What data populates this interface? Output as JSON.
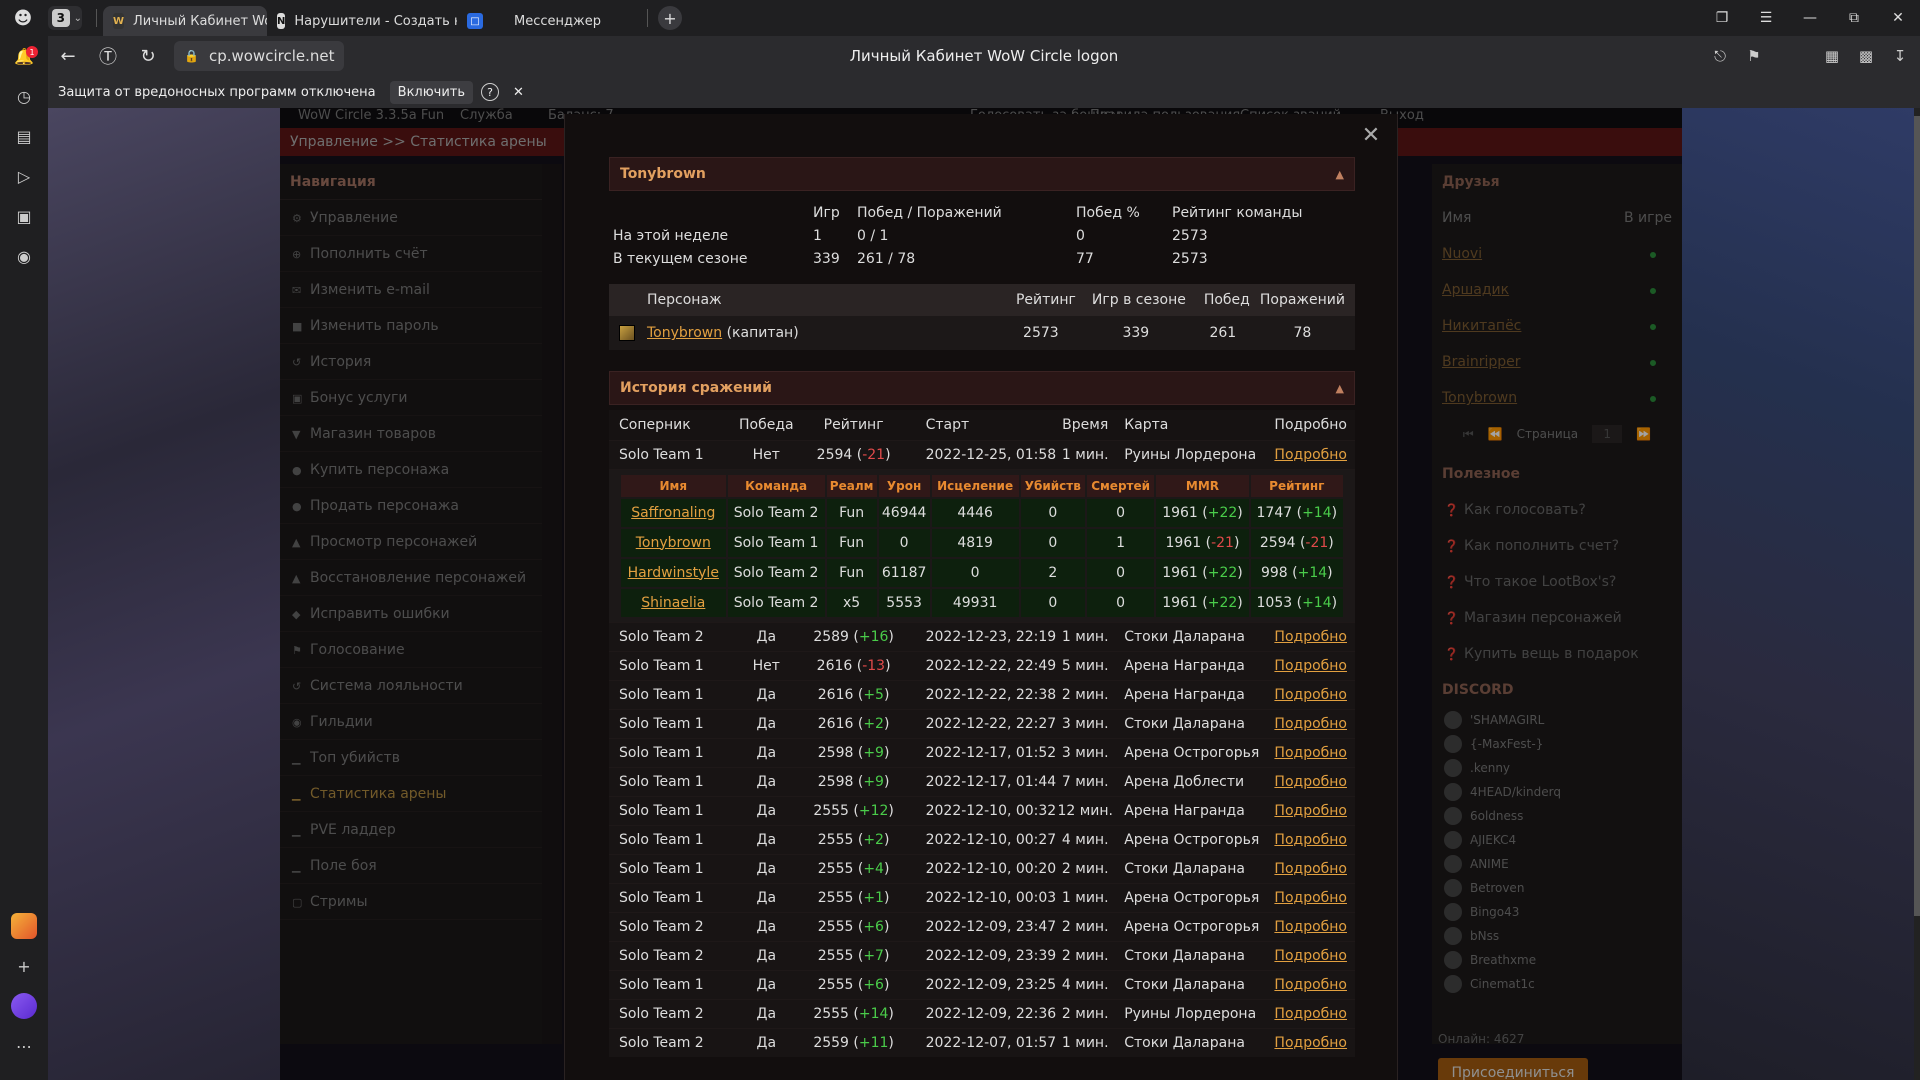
{
  "browser": {
    "tab_count": "3",
    "tabs": [
      {
        "label": "Личный Кабинет WoW",
        "active": true
      },
      {
        "label": "Нарушители - Создать но",
        "active": false
      },
      {
        "label": "Мессенджер",
        "active": false
      }
    ],
    "url": "cp.wowcircle.net",
    "page_title": "Личный Кабинет WoW Circle logon",
    "protection_text": "Защита от вредоносных программ отключена",
    "enable_label": "Включить",
    "notif_badge": "1"
  },
  "site": {
    "top_links": [
      "WoW Circle 3.3.5a Fun",
      "Служба",
      "Баланс: 7 ...",
      "Голосовать за бонусы",
      "Правила пользования",
      "Список званий",
      "Выход"
    ],
    "breadcrumb": "Управление >> Статистика арены",
    "nav_title": "Навигация",
    "nav_items": [
      {
        "icon": "gear-icon",
        "label": "Управление"
      },
      {
        "icon": "plus-icon",
        "label": "Пополнить счёт"
      },
      {
        "icon": "mail-icon",
        "label": "Изменить e-mail"
      },
      {
        "icon": "lock-icon",
        "label": "Изменить пароль"
      },
      {
        "icon": "history-icon",
        "label": "История"
      },
      {
        "icon": "book-icon",
        "label": "Бонус услуги"
      },
      {
        "icon": "cart-icon",
        "label": "Магазин товаров"
      },
      {
        "icon": "user-icon",
        "label": "Купить персонажа"
      },
      {
        "icon": "user-icon",
        "label": "Продать персонажа"
      },
      {
        "icon": "figure-icon",
        "label": "Просмотр персонажей"
      },
      {
        "icon": "figure-icon",
        "label": "Восстановление персонажей"
      },
      {
        "icon": "shield-icon",
        "label": "Исправить ошибки"
      },
      {
        "icon": "flag-icon",
        "label": "Голосование"
      },
      {
        "icon": "history-icon",
        "label": "Система лояльности"
      },
      {
        "icon": "users-icon",
        "label": "Гильдии"
      },
      {
        "icon": "chart-icon",
        "label": "Топ убийств"
      },
      {
        "icon": "chart-icon",
        "label": "Статистика арены",
        "active": true
      },
      {
        "icon": "chart-icon",
        "label": "PVE ладдер"
      },
      {
        "icon": "chart-icon",
        "label": "Поле боя"
      },
      {
        "icon": "chat-icon",
        "label": "Стримы"
      }
    ],
    "friends": {
      "title": "Друзья",
      "col_name": "Имя",
      "col_ingame": "В игре",
      "list": [
        "Nuovi",
        "Аршадик",
        "Никитапёс",
        "Brainripper",
        "Tonybrown"
      ],
      "page_label": "Страница",
      "page": "1"
    },
    "useful": {
      "title": "Полезное",
      "items": [
        "Как голосовать?",
        "Как пополнить счет?",
        "Что такое LootBox's?",
        "Магазин персонажей",
        "Купить вещь в подарок"
      ]
    },
    "discord": {
      "title": "DISCORD",
      "members": [
        "'SHAMAGIRL",
        "{-MaxFest-}",
        ".kenny",
        "4HEAD/kinderq",
        "6oldness",
        "AJIEKC4",
        "ANIME",
        "Betroven",
        "Bingo43",
        "bNss",
        "Breathxme",
        "Cinemat1c"
      ],
      "online": "Онлайн: 4627",
      "join_label": "Присоединиться"
    }
  },
  "modal": {
    "team_title": "Tonybrown",
    "summary": {
      "headers": [
        "",
        "Игр",
        "Побед / Поражений",
        "Побед %",
        "Рейтинг команды"
      ],
      "rows": [
        [
          "На этой неделе",
          "1",
          "0 / 1",
          "0",
          "2573"
        ],
        [
          "В текущем сезоне",
          "339",
          "261 / 78",
          "77",
          "2573"
        ]
      ]
    },
    "characters": {
      "headers": [
        "Персонаж",
        "Рейтинг",
        "Игр в сезоне",
        "Побед",
        "Поражений"
      ],
      "rows": [
        {
          "name": "Tonybrown",
          "suffix": "(капитан)",
          "rating": "2573",
          "games": "339",
          "wins": "261",
          "losses": "78"
        }
      ]
    },
    "history_title": "История сражений",
    "history_headers": [
      "Соперник",
      "Победа",
      "Рейтинг",
      "Старт",
      "Время",
      "Карта",
      "Подробно"
    ],
    "history": [
      {
        "opp": "Solo Team 1",
        "win": "Нет",
        "rating": "2594",
        "delta": "-21",
        "start": "2022-12-25, 01:58",
        "dur": "1 мин.",
        "map": "Руины Лордерона",
        "more": "Подробно"
      },
      {
        "opp": "Solo Team 2",
        "win": "Да",
        "rating": "2589",
        "delta": "+16",
        "start": "2022-12-23, 22:19",
        "dur": "1 мин.",
        "map": "Стоки Даларана",
        "more": "Подробно"
      },
      {
        "opp": "Solo Team 1",
        "win": "Нет",
        "rating": "2616",
        "delta": "-13",
        "start": "2022-12-22, 22:49",
        "dur": "5 мин.",
        "map": "Арена Награнда",
        "more": "Подробно"
      },
      {
        "opp": "Solo Team 1",
        "win": "Да",
        "rating": "2616",
        "delta": "+5",
        "start": "2022-12-22, 22:38",
        "dur": "2 мин.",
        "map": "Арена Награнда",
        "more": "Подробно"
      },
      {
        "opp": "Solo Team 1",
        "win": "Да",
        "rating": "2616",
        "delta": "+2",
        "start": "2022-12-22, 22:27",
        "dur": "3 мин.",
        "map": "Стоки Даларана",
        "more": "Подробно"
      },
      {
        "opp": "Solo Team 1",
        "win": "Да",
        "rating": "2598",
        "delta": "+9",
        "start": "2022-12-17, 01:52",
        "dur": "3 мин.",
        "map": "Арена Острогорья",
        "more": "Подробно"
      },
      {
        "opp": "Solo Team 1",
        "win": "Да",
        "rating": "2598",
        "delta": "+9",
        "start": "2022-12-17, 01:44",
        "dur": "7 мин.",
        "map": "Арена Доблести",
        "more": "Подробно"
      },
      {
        "opp": "Solo Team 1",
        "win": "Да",
        "rating": "2555",
        "delta": "+12",
        "start": "2022-12-10, 00:32",
        "dur": "12 мин.",
        "map": "Арена Награнда",
        "more": "Подробно"
      },
      {
        "opp": "Solo Team 1",
        "win": "Да",
        "rating": "2555",
        "delta": "+2",
        "start": "2022-12-10, 00:27",
        "dur": "4 мин.",
        "map": "Арена Острогорья",
        "more": "Подробно"
      },
      {
        "opp": "Solo Team 1",
        "win": "Да",
        "rating": "2555",
        "delta": "+4",
        "start": "2022-12-10, 00:20",
        "dur": "2 мин.",
        "map": "Стоки Даларана",
        "more": "Подробно"
      },
      {
        "opp": "Solo Team 1",
        "win": "Да",
        "rating": "2555",
        "delta": "+1",
        "start": "2022-12-10, 00:03",
        "dur": "1 мин.",
        "map": "Арена Острогорья",
        "more": "Подробно"
      },
      {
        "opp": "Solo Team 2",
        "win": "Да",
        "rating": "2555",
        "delta": "+6",
        "start": "2022-12-09, 23:47",
        "dur": "2 мин.",
        "map": "Арена Острогорья",
        "more": "Подробно"
      },
      {
        "opp": "Solo Team 2",
        "win": "Да",
        "rating": "2555",
        "delta": "+7",
        "start": "2022-12-09, 23:39",
        "dur": "2 мин.",
        "map": "Стоки Даларана",
        "more": "Подробно"
      },
      {
        "opp": "Solo Team 1",
        "win": "Да",
        "rating": "2555",
        "delta": "+6",
        "start": "2022-12-09, 23:25",
        "dur": "4 мин.",
        "map": "Стоки Даларана",
        "more": "Подробно"
      },
      {
        "opp": "Solo Team 2",
        "win": "Да",
        "rating": "2555",
        "delta": "+14",
        "start": "2022-12-09, 22:36",
        "dur": "2 мин.",
        "map": "Руины Лордерона",
        "more": "Подробно"
      },
      {
        "opp": "Solo Team 2",
        "win": "Да",
        "rating": "2559",
        "delta": "+11",
        "start": "2022-12-07, 01:57",
        "dur": "1 мин.",
        "map": "Стоки Даларана",
        "more": "Подробно"
      }
    ],
    "detail_headers": [
      "Имя",
      "Команда",
      "Реалм",
      "Урон",
      "Исцеление",
      "Убийств",
      "Смертей",
      "MMR",
      "Рейтинг"
    ],
    "detail_rows": [
      {
        "name": "Saffronaling",
        "team": "Solo Team 2",
        "realm": "Fun",
        "dmg": "46944",
        "heal": "4446",
        "kills": "0",
        "deaths": "0",
        "mmr": "1961",
        "mmr_d": "+22",
        "rating": "1747",
        "rating_d": "+14"
      },
      {
        "name": "Tonybrown",
        "team": "Solo Team 1",
        "realm": "Fun",
        "dmg": "0",
        "heal": "4819",
        "kills": "0",
        "deaths": "1",
        "mmr": "1961",
        "mmr_d": "-21",
        "rating": "2594",
        "rating_d": "-21"
      },
      {
        "name": "Hardwinstyle",
        "team": "Solo Team 2",
        "realm": "Fun",
        "dmg": "61187",
        "heal": "0",
        "kills": "2",
        "deaths": "0",
        "mmr": "1961",
        "mmr_d": "+22",
        "rating": "998",
        "rating_d": "+14"
      },
      {
        "name": "Shinaelia",
        "team": "Solo Team 2",
        "realm": "x5",
        "dmg": "5553",
        "heal": "49931",
        "kills": "0",
        "deaths": "0",
        "mmr": "1961",
        "mmr_d": "+22",
        "rating": "1053",
        "rating_d": "+14"
      }
    ]
  }
}
